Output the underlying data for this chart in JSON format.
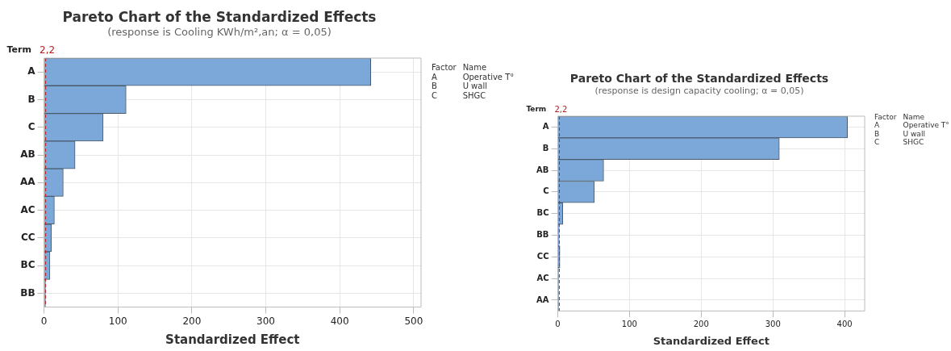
{
  "chart_data": [
    {
      "type": "bar",
      "orientation": "horizontal",
      "title": "Pareto Chart of the Standardized Effects",
      "subtitle": "(response is Cooling KWh/m²,an; α = 0,05)",
      "ylabel": "Term",
      "xlabel": "Standardized Effect",
      "categories": [
        "A",
        "B",
        "C",
        "AB",
        "AA",
        "AC",
        "CC",
        "BC",
        "BB"
      ],
      "values": [
        442,
        111,
        80,
        42,
        26,
        14,
        10,
        8,
        2
      ],
      "color": "#7ba7d9",
      "xlim": [
        0,
        510
      ],
      "xticks": [
        0,
        100,
        200,
        300,
        400,
        500
      ],
      "grid": true,
      "legend": false,
      "ref_lines": [
        {
          "axis": "x",
          "value": 2.2,
          "label": "2,2",
          "color": "#b22222",
          "line_style": "dashed"
        }
      ],
      "annotations": [
        "Factor",
        "Name",
        "A",
        "Operative T°",
        "B",
        "U wall",
        "C",
        "SHGC"
      ]
    },
    {
      "type": "bar",
      "orientation": "horizontal",
      "title": "Pareto Chart of the Standardized Effects",
      "subtitle": "(response is design capacity cooling; α = 0,05)",
      "ylabel": "Term",
      "xlabel": "Standardized Effect",
      "categories": [
        "A",
        "B",
        "AB",
        "C",
        "BC",
        "BB",
        "CC",
        "AC",
        "AA"
      ],
      "values": [
        404,
        309,
        64,
        51,
        7,
        2,
        3,
        1,
        1
      ],
      "color": "#7ba7d9",
      "xlim": [
        0,
        428
      ],
      "xticks": [
        0,
        100,
        200,
        300,
        400
      ],
      "grid": true,
      "legend": false,
      "ref_lines": [
        {
          "axis": "x",
          "value": 2.2,
          "label": "2,2",
          "color": "#b22222",
          "line_style": "dashed"
        }
      ],
      "annotations": [
        "Factor",
        "Name",
        "A",
        "Operative T°",
        "B",
        "U wall",
        "C",
        "SHGC"
      ]
    }
  ]
}
